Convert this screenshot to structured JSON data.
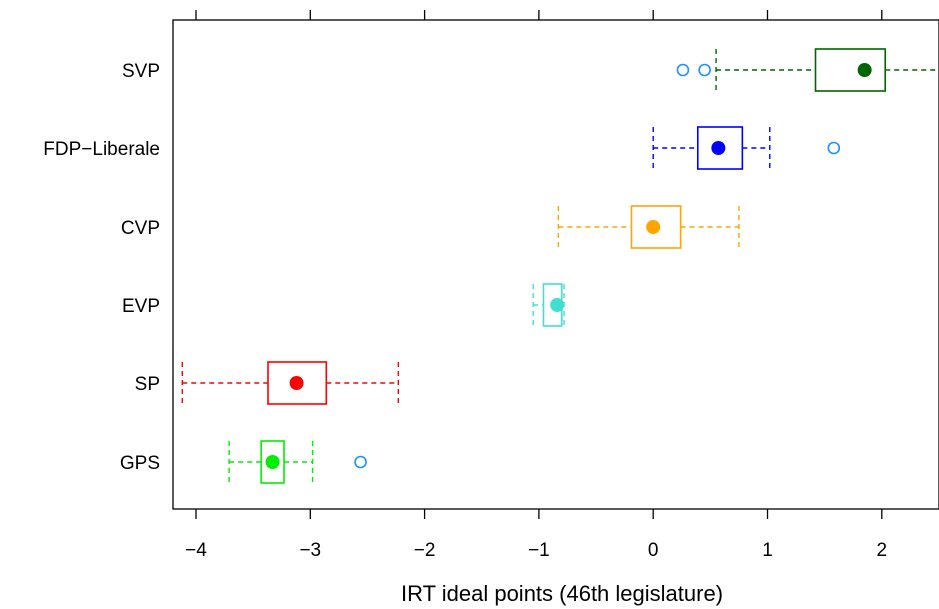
{
  "chart_data": {
    "type": "boxplot",
    "title": "",
    "xlabel": "IRT ideal points (46th legislature)",
    "ylabel": "",
    "xlim": [
      -4.2,
      2.5
    ],
    "x_ticks": [
      -4,
      -3,
      -2,
      -1,
      0,
      1,
      2
    ],
    "x_tick_labels": [
      "−4",
      "−3",
      "−2",
      "−1",
      "0",
      "1",
      "2"
    ],
    "grid": false,
    "orientation": "horizontal",
    "categories": [
      "SVP",
      "FDP−Liberale",
      "CVP",
      "EVP",
      "SP",
      "GPS"
    ],
    "series": [
      {
        "category": "SVP",
        "color": "#006400",
        "whisker_low": 0.55,
        "q1": 1.42,
        "median": 1.85,
        "q3": 2.03,
        "whisker_high": 2.5,
        "outliers": [
          0.26,
          0.45
        ]
      },
      {
        "category": "FDP−Liberale",
        "color": "#0000ff",
        "whisker_low": 0.0,
        "q1": 0.39,
        "median": 0.57,
        "q3": 0.78,
        "whisker_high": 1.02,
        "outliers": [
          1.58
        ]
      },
      {
        "category": "CVP",
        "color": "#ffa500",
        "whisker_low": -0.83,
        "q1": -0.19,
        "median": 0.0,
        "q3": 0.24,
        "whisker_high": 0.75,
        "outliers": []
      },
      {
        "category": "EVP",
        "color": "#40e0d0",
        "whisker_low": -1.05,
        "q1": -0.96,
        "median": -0.84,
        "q3": -0.8,
        "whisker_high": -0.78,
        "outliers": []
      },
      {
        "category": "SP",
        "color": "#ff0000",
        "whisker_low": -4.12,
        "q1": -3.37,
        "median": -3.12,
        "q3": -2.86,
        "whisker_high": -2.23,
        "outliers": []
      },
      {
        "category": "GPS",
        "color": "#00ee00",
        "whisker_low": -3.71,
        "q1": -3.43,
        "median": -3.33,
        "q3": -3.23,
        "whisker_high": -2.98,
        "outliers": [
          -2.56
        ]
      }
    ],
    "outlier_color": "#1e90ff"
  }
}
